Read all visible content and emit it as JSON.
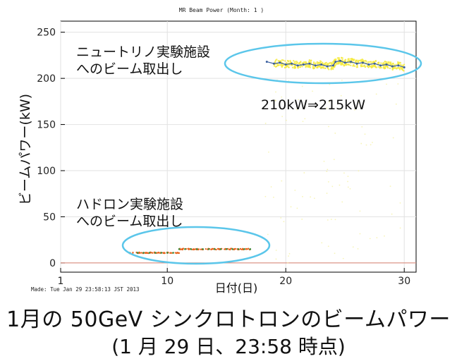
{
  "chart_data": {
    "type": "scatter",
    "title": "MR Beam Power (Month: 1 )",
    "xlabel": "日付(日)",
    "ylabel": "ビームパワー(kW)",
    "xlim": [
      1,
      31
    ],
    "ylim": [
      -10,
      262
    ],
    "x_ticks": [
      1,
      10,
      20,
      30
    ],
    "y_ticks": [
      0,
      50,
      100,
      150,
      200,
      250
    ],
    "grid": true,
    "series": [
      {
        "x": [
          18.4,
          19.0,
          19.5,
          20.0,
          20.5,
          21.0,
          21.5,
          22.0,
          22.5,
          23.0,
          23.5,
          24.0,
          24.2,
          24.6,
          25.0,
          25.5,
          26.0,
          26.5,
          27.0,
          27.5,
          28.0,
          28.5,
          29.0,
          29.5,
          30.0
        ],
        "y": [
          218,
          216,
          217,
          215,
          216,
          214,
          215,
          216,
          214,
          215,
          213,
          214,
          218,
          219,
          217,
          218,
          216,
          217,
          215,
          216,
          214,
          215,
          213,
          214,
          212
        ]
      },
      {
        "x": [
          6.8,
          7.5,
          8.0,
          8.5,
          9.0,
          9.5,
          10.0,
          10.5,
          11.0,
          11.5,
          12.0,
          12.5,
          13.0,
          13.5,
          14.0,
          14.5,
          15.0,
          15.5,
          16.0,
          16.5,
          17.0
        ],
        "y": [
          11,
          11,
          11,
          11,
          11,
          11,
          11,
          11,
          15,
          15,
          15,
          15,
          15,
          15,
          15,
          15,
          15,
          15,
          15,
          15,
          15
        ]
      }
    ]
  },
  "annotations": {
    "neutrino_1": "ニュートリノ実験施設",
    "neutrino_2": "へのビーム取出し",
    "power_change": "210kW⇒215kW",
    "hadron_1": "ハドロン実験施設",
    "hadron_2": "へのビーム取出し"
  },
  "made_stamp": "Made: Tue Jan 29 23:58:13 JST 2013",
  "caption_line1": "1月の 50GeV シンクロトロンのビームパワー",
  "caption_line2": "(1 月 29 日、23:58 時点)",
  "colors": {
    "points": "#f4ea3c",
    "trend": "#3a5fa0",
    "ellipse": "#5bc6ea",
    "hadron_dots": "#e8621a",
    "baseline": "#d88070"
  }
}
